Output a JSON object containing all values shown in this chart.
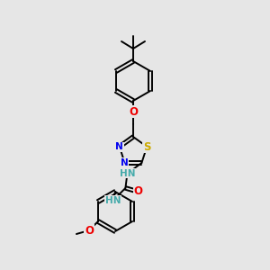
{
  "bg_color": "#e6e6e6",
  "bond_color": "#000000",
  "bond_width": 1.4,
  "atom_colors": {
    "S": "#ccaa00",
    "N": "#0000ee",
    "O": "#ee0000",
    "H": "#44aaaa",
    "C": "#000000"
  },
  "font_size": 7.5,
  "fig_bg": "#e6e6e6"
}
